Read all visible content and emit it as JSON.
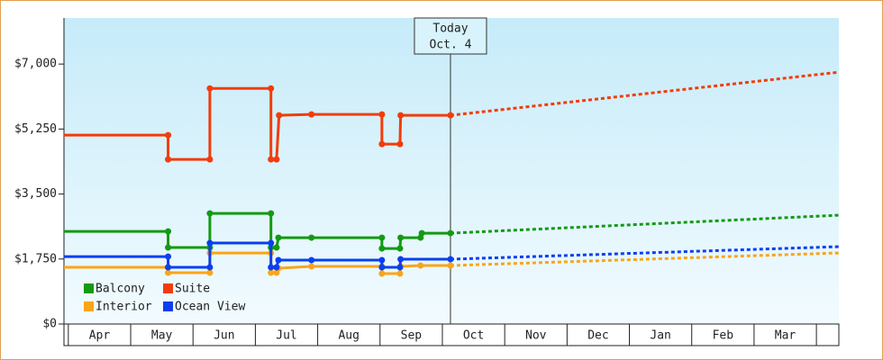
{
  "chart_data": {
    "type": "line",
    "xlim": [
      -0.07,
      12.36
    ],
    "xticks": [
      {
        "value": 0,
        "label": "Apr"
      },
      {
        "value": 1,
        "label": "May"
      },
      {
        "value": 2,
        "label": "Jun"
      },
      {
        "value": 3,
        "label": "Jul"
      },
      {
        "value": 4,
        "label": "Aug"
      },
      {
        "value": 5,
        "label": "Sep"
      },
      {
        "value": 6,
        "label": "Oct"
      },
      {
        "value": 7,
        "label": "Nov"
      },
      {
        "value": 8,
        "label": "Dec"
      },
      {
        "value": 9,
        "label": "Jan"
      },
      {
        "value": 10,
        "label": "Feb"
      },
      {
        "value": 11,
        "label": "Mar"
      }
    ],
    "ylim": [
      0,
      8240
    ],
    "yticks": [
      {
        "value": 0,
        "label": "$0"
      },
      {
        "value": 1750,
        "label": "$1,750"
      },
      {
        "value": 3500,
        "label": "$3,500"
      },
      {
        "value": 5250,
        "label": "$5,250"
      },
      {
        "value": 7000,
        "label": "$7,000"
      }
    ],
    "annotation": {
      "x": 6.13,
      "lines": [
        "Today",
        "Oct. 4"
      ]
    },
    "series": [
      {
        "name": "Balcony",
        "color": "#139a13",
        "x": [
          -0.07,
          1.6,
          1.6,
          2.27,
          2.27,
          3.25,
          3.25,
          3.34,
          3.37,
          3.9,
          5.03,
          5.03,
          5.32,
          5.33,
          5.65,
          5.67,
          6.13
        ],
        "values": [
          2494,
          2494,
          2059,
          2059,
          2979,
          2979,
          2059,
          2059,
          2325,
          2325,
          2325,
          2034,
          2034,
          2325,
          2325,
          2446,
          2446
        ],
        "forecast": {
          "x": [
            6.13,
            12.36
          ],
          "values": [
            2446,
            2930
          ]
        }
      },
      {
        "name": "Suite",
        "color": "#f23c0a",
        "x": [
          -0.07,
          1.6,
          1.6,
          2.27,
          2.27,
          3.25,
          3.25,
          3.34,
          3.38,
          3.9,
          5.03,
          5.03,
          5.32,
          5.33,
          6.13
        ],
        "values": [
          5086,
          5086,
          4432,
          4432,
          6345,
          6345,
          4432,
          4432,
          5619,
          5643,
          5643,
          4844,
          4844,
          5619,
          5619
        ],
        "forecast": {
          "x": [
            6.13,
            12.36
          ],
          "values": [
            5619,
            6781
          ]
        }
      },
      {
        "name": "Interior",
        "color": "#f9a51a",
        "x": [
          -0.07,
          1.6,
          1.6,
          2.27,
          2.27,
          3.25,
          3.25,
          3.34,
          3.37,
          3.9,
          5.03,
          5.03,
          5.32,
          5.33,
          5.65,
          6.13
        ],
        "values": [
          1526,
          1526,
          1380,
          1380,
          1913,
          1913,
          1380,
          1380,
          1502,
          1550,
          1550,
          1356,
          1356,
          1550,
          1574,
          1574
        ],
        "forecast": {
          "x": [
            6.13,
            12.36
          ],
          "values": [
            1574,
            1913
          ]
        }
      },
      {
        "name": "Ocean View",
        "color": "#0a3ff0",
        "x": [
          -0.07,
          1.6,
          1.6,
          2.27,
          2.27,
          3.25,
          3.25,
          3.34,
          3.37,
          3.9,
          5.03,
          5.03,
          5.32,
          5.33,
          6.13
        ],
        "values": [
          1816,
          1816,
          1526,
          1526,
          2180,
          2180,
          1526,
          1526,
          1720,
          1720,
          1720,
          1526,
          1526,
          1744,
          1744
        ],
        "forecast": {
          "x": [
            6.13,
            12.36
          ],
          "values": [
            1744,
            2083
          ]
        }
      }
    ]
  }
}
